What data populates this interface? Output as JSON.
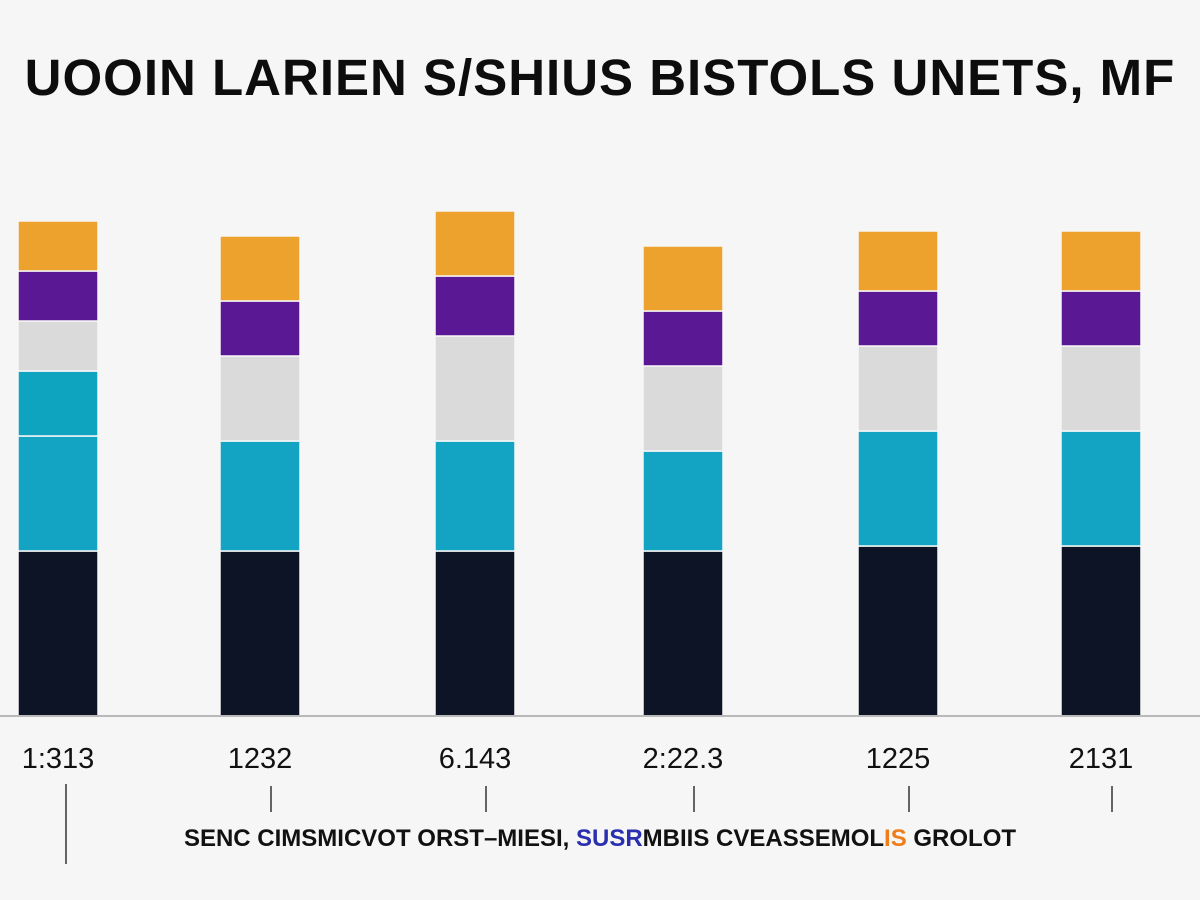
{
  "chart_data": {
    "type": "bar",
    "stacked": true,
    "title": "UOOIN LARIEN S/SHIUS BISTOLS UNETS, MF",
    "categories": [
      "1:313",
      "1232",
      "6.143",
      "2:22.3",
      "1225",
      "2131"
    ],
    "ylim": [
      0,
      100
    ],
    "grid": false,
    "series": [
      {
        "color": "#0c1425",
        "values": [
          33,
          33,
          33,
          33,
          34,
          34
        ]
      },
      {
        "color": "#13a3c3",
        "values": [
          23,
          22,
          22,
          20,
          23,
          23
        ]
      },
      {
        "color": "#0ea3bf",
        "values": [
          13,
          0,
          0,
          0,
          0,
          0
        ]
      },
      {
        "color": "#dadada",
        "values": [
          10,
          17,
          21,
          17,
          17,
          17
        ]
      },
      {
        "color": "#5b1894",
        "values": [
          10,
          11,
          12,
          11,
          11,
          11
        ]
      },
      {
        "color": "#eda22e",
        "values": [
          10,
          13,
          13,
          13,
          12,
          12
        ]
      }
    ]
  },
  "legend": [
    {
      "text": "SENC CIMSMICVOT ORST–MIESI, ",
      "color": "#111111"
    },
    {
      "text": "SUSR",
      "color": "#2a2fb0"
    },
    {
      "text": "MBIIS CVEASSEMOL",
      "color": "#111111"
    },
    {
      "text": "IS",
      "color": "#ef7d1a"
    },
    {
      "text": " GROLOT",
      "color": "#111111"
    }
  ]
}
